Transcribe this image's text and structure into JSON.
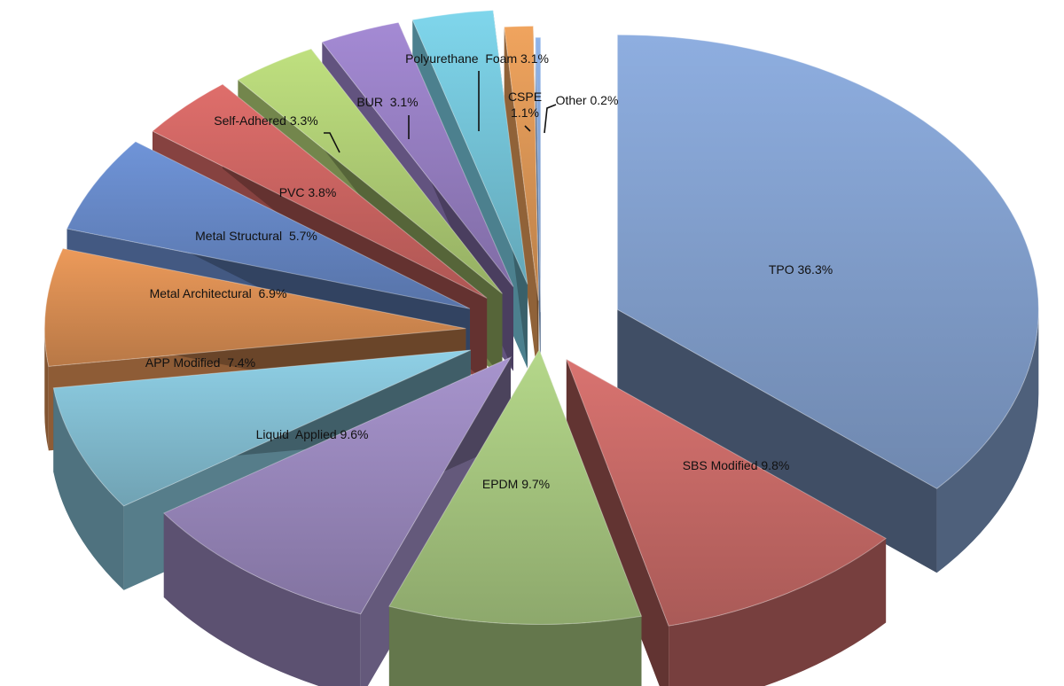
{
  "chart_data": {
    "type": "pie",
    "style": "3d-exploded",
    "title": "",
    "slices": [
      {
        "name": "TPO",
        "value": 36.3,
        "label": "TPO 36.3%",
        "color": "#8EAEE0"
      },
      {
        "name": "SBS Modified",
        "value": 9.8,
        "label": "SBS Modified 9.8%",
        "color": "#D97370"
      },
      {
        "name": "EPDM",
        "value": 9.7,
        "label": "EPDM 9.7%",
        "color": "#B5D88A"
      },
      {
        "name": "Liquid Applied",
        "value": 9.6,
        "label": "Liquid  Applied 9.6%",
        "color": "#A794CD"
      },
      {
        "name": "APP Modified",
        "value": 7.4,
        "label": "APP Modified  7.4%",
        "color": "#8FD0E6"
      },
      {
        "name": "Metal Architectural",
        "value": 6.9,
        "label": "Metal Architectural  6.9%",
        "color": "#EC9A5A"
      },
      {
        "name": "Metal Structural",
        "value": 5.7,
        "label": "Metal Structural  5.7%",
        "color": "#6F94D8"
      },
      {
        "name": "PVC",
        "value": 3.8,
        "label": "PVC 3.8%",
        "color": "#DF6E6B"
      },
      {
        "name": "Self-Adhered",
        "value": 3.3,
        "label": "Self-Adhered 3.3%",
        "color": "#BFE07F"
      },
      {
        "name": "BUR",
        "value": 3.1,
        "label": "BUR  3.1%",
        "color": "#A48AD4"
      },
      {
        "name": "Polyurethane Foam",
        "value": 3.1,
        "label": "Polyurethane  Foam 3.1%",
        "color": "#7FD6EC"
      },
      {
        "name": "CSPE",
        "value": 1.1,
        "label": "CSPE\n1.1%",
        "color": "#F0A45E"
      },
      {
        "name": "Other",
        "value": 0.2,
        "label": "Other 0.2%",
        "color": "#8FB4EA"
      }
    ]
  }
}
